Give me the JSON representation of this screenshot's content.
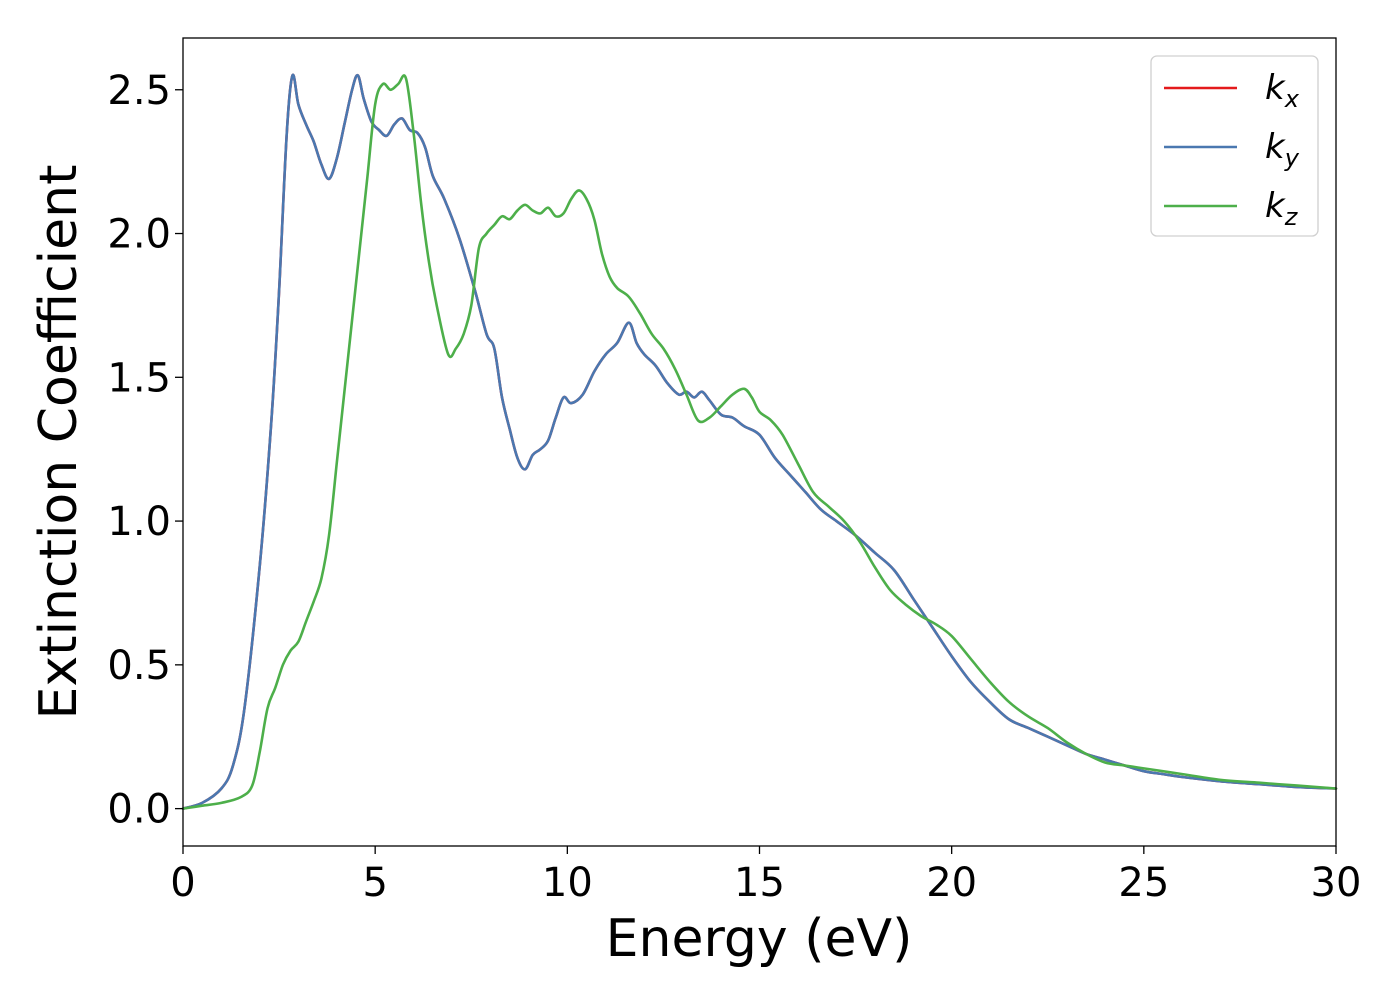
{
  "chart_data": {
    "type": "line",
    "title": "",
    "xlabel": "Energy (eV)",
    "ylabel": "Extinction Coefficient",
    "xlim": [
      0,
      30
    ],
    "ylim": [
      -0.13,
      2.68
    ],
    "xticks": [
      0,
      5,
      10,
      15,
      20,
      25,
      30
    ],
    "xtick_labels": [
      "0",
      "5",
      "10",
      "15",
      "20",
      "25",
      "30"
    ],
    "yticks": [
      0,
      0.5,
      1,
      1.5,
      2,
      2.5
    ],
    "ytick_labels": [
      "0.0",
      "0.5",
      "1.0",
      "1.5",
      "2.0",
      "2.5"
    ],
    "grid": false,
    "legend_placement": "top-right",
    "series": [
      {
        "name": "k",
        "subscript": "x",
        "color": "#e41a1c",
        "x": [
          0,
          0.5,
          1.0,
          1.3,
          1.6,
          2.0,
          2.3,
          2.5,
          2.7,
          2.85,
          3.0,
          3.2,
          3.4,
          3.6,
          3.8,
          4.0,
          4.2,
          4.4,
          4.55,
          4.7,
          4.9,
          5.1,
          5.3,
          5.5,
          5.7,
          5.9,
          6.1,
          6.3,
          6.5,
          6.8,
          7.2,
          7.6,
          7.9,
          8.1,
          8.3,
          8.5,
          8.7,
          8.9,
          9.1,
          9.3,
          9.5,
          9.7,
          9.9,
          10.1,
          10.4,
          10.7,
          11.0,
          11.3,
          11.6,
          11.8,
          12.0,
          12.3,
          12.6,
          12.9,
          13.1,
          13.3,
          13.5,
          13.7,
          14.0,
          14.3,
          14.6,
          15.0,
          15.4,
          15.8,
          16.2,
          16.6,
          17.0,
          17.5,
          18.0,
          18.5,
          19.0,
          19.5,
          20.0,
          20.5,
          21.0,
          21.5,
          22.0,
          22.5,
          23.0,
          23.5,
          24.0,
          24.5,
          25.0,
          25.5,
          26.0,
          27.0,
          28.0,
          29.0,
          30.0
        ],
        "values": [
          0.0,
          0.02,
          0.07,
          0.15,
          0.35,
          0.85,
          1.35,
          1.8,
          2.35,
          2.55,
          2.45,
          2.38,
          2.32,
          2.24,
          2.19,
          2.26,
          2.38,
          2.5,
          2.55,
          2.47,
          2.39,
          2.36,
          2.34,
          2.38,
          2.4,
          2.36,
          2.35,
          2.3,
          2.2,
          2.12,
          1.98,
          1.8,
          1.65,
          1.6,
          1.43,
          1.32,
          1.22,
          1.18,
          1.23,
          1.25,
          1.28,
          1.36,
          1.43,
          1.41,
          1.44,
          1.52,
          1.58,
          1.62,
          1.69,
          1.62,
          1.58,
          1.54,
          1.48,
          1.44,
          1.45,
          1.43,
          1.45,
          1.42,
          1.37,
          1.36,
          1.33,
          1.3,
          1.22,
          1.16,
          1.1,
          1.04,
          1.0,
          0.95,
          0.89,
          0.83,
          0.73,
          0.63,
          0.53,
          0.44,
          0.37,
          0.31,
          0.28,
          0.25,
          0.22,
          0.19,
          0.17,
          0.15,
          0.13,
          0.12,
          0.11,
          0.095,
          0.085,
          0.075,
          0.07
        ]
      },
      {
        "name": "k",
        "subscript": "y",
        "color": "#4a78b0",
        "x": [
          0,
          0.5,
          1.0,
          1.3,
          1.6,
          2.0,
          2.3,
          2.5,
          2.7,
          2.85,
          3.0,
          3.2,
          3.4,
          3.6,
          3.8,
          4.0,
          4.2,
          4.4,
          4.55,
          4.7,
          4.9,
          5.1,
          5.3,
          5.5,
          5.7,
          5.9,
          6.1,
          6.3,
          6.5,
          6.8,
          7.2,
          7.6,
          7.9,
          8.1,
          8.3,
          8.5,
          8.7,
          8.9,
          9.1,
          9.3,
          9.5,
          9.7,
          9.9,
          10.1,
          10.4,
          10.7,
          11.0,
          11.3,
          11.6,
          11.8,
          12.0,
          12.3,
          12.6,
          12.9,
          13.1,
          13.3,
          13.5,
          13.7,
          14.0,
          14.3,
          14.6,
          15.0,
          15.4,
          15.8,
          16.2,
          16.6,
          17.0,
          17.5,
          18.0,
          18.5,
          19.0,
          19.5,
          20.0,
          20.5,
          21.0,
          21.5,
          22.0,
          22.5,
          23.0,
          23.5,
          24.0,
          24.5,
          25.0,
          25.5,
          26.0,
          27.0,
          28.0,
          29.0,
          30.0
        ],
        "values": [
          0.0,
          0.02,
          0.07,
          0.15,
          0.35,
          0.85,
          1.35,
          1.8,
          2.35,
          2.55,
          2.45,
          2.38,
          2.32,
          2.24,
          2.19,
          2.26,
          2.38,
          2.5,
          2.55,
          2.47,
          2.39,
          2.36,
          2.34,
          2.38,
          2.4,
          2.36,
          2.35,
          2.3,
          2.2,
          2.12,
          1.98,
          1.8,
          1.65,
          1.6,
          1.43,
          1.32,
          1.22,
          1.18,
          1.23,
          1.25,
          1.28,
          1.36,
          1.43,
          1.41,
          1.44,
          1.52,
          1.58,
          1.62,
          1.69,
          1.62,
          1.58,
          1.54,
          1.48,
          1.44,
          1.45,
          1.43,
          1.45,
          1.42,
          1.37,
          1.36,
          1.33,
          1.3,
          1.22,
          1.16,
          1.1,
          1.04,
          1.0,
          0.95,
          0.89,
          0.83,
          0.73,
          0.63,
          0.53,
          0.44,
          0.37,
          0.31,
          0.28,
          0.25,
          0.22,
          0.19,
          0.17,
          0.15,
          0.13,
          0.12,
          0.11,
          0.095,
          0.085,
          0.075,
          0.07
        ]
      },
      {
        "name": "k",
        "subscript": "z",
        "color": "#4daf4a",
        "x": [
          0,
          0.5,
          1.0,
          1.5,
          1.8,
          2.0,
          2.2,
          2.4,
          2.6,
          2.8,
          3.0,
          3.2,
          3.4,
          3.6,
          3.8,
          4.0,
          4.2,
          4.4,
          4.6,
          4.8,
          5.0,
          5.2,
          5.4,
          5.6,
          5.8,
          6.0,
          6.2,
          6.4,
          6.6,
          6.9,
          7.1,
          7.3,
          7.5,
          7.7,
          7.9,
          8.1,
          8.3,
          8.5,
          8.7,
          8.9,
          9.1,
          9.3,
          9.5,
          9.7,
          9.9,
          10.1,
          10.3,
          10.5,
          10.7,
          10.9,
          11.1,
          11.3,
          11.6,
          11.9,
          12.2,
          12.5,
          12.8,
          13.1,
          13.4,
          13.7,
          14.0,
          14.3,
          14.6,
          14.8,
          15.0,
          15.3,
          15.6,
          16.0,
          16.4,
          16.8,
          17.2,
          17.6,
          18.0,
          18.4,
          18.8,
          19.2,
          19.6,
          20.0,
          20.5,
          21.0,
          21.5,
          22.0,
          22.5,
          23.0,
          23.5,
          24.0,
          24.5,
          25.0,
          26.0,
          27.0,
          28.0,
          29.0,
          30.0
        ],
        "values": [
          0.0,
          0.01,
          0.02,
          0.04,
          0.08,
          0.2,
          0.35,
          0.42,
          0.5,
          0.55,
          0.58,
          0.65,
          0.72,
          0.8,
          0.95,
          1.2,
          1.45,
          1.7,
          1.95,
          2.2,
          2.45,
          2.52,
          2.5,
          2.52,
          2.54,
          2.35,
          2.1,
          1.9,
          1.75,
          1.58,
          1.6,
          1.65,
          1.75,
          1.95,
          2.0,
          2.03,
          2.06,
          2.05,
          2.08,
          2.1,
          2.08,
          2.07,
          2.09,
          2.06,
          2.07,
          2.12,
          2.15,
          2.12,
          2.05,
          1.93,
          1.85,
          1.81,
          1.78,
          1.72,
          1.65,
          1.6,
          1.53,
          1.44,
          1.35,
          1.36,
          1.4,
          1.44,
          1.46,
          1.43,
          1.38,
          1.35,
          1.3,
          1.2,
          1.1,
          1.05,
          1.0,
          0.93,
          0.84,
          0.76,
          0.71,
          0.67,
          0.64,
          0.6,
          0.52,
          0.44,
          0.37,
          0.32,
          0.28,
          0.23,
          0.19,
          0.16,
          0.15,
          0.14,
          0.12,
          0.1,
          0.09,
          0.08,
          0.07
        ]
      }
    ]
  }
}
